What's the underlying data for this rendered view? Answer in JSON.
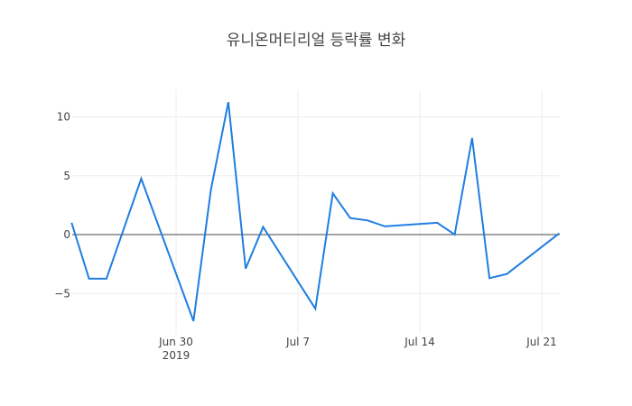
{
  "chart_data": {
    "type": "line",
    "title": "유니온머티리얼 등락률 변화",
    "xlabel": "",
    "ylabel": "",
    "x": [
      "2019-06-24",
      "2019-06-25",
      "2019-06-26",
      "2019-06-28",
      "2019-07-01",
      "2019-07-02",
      "2019-07-03",
      "2019-07-04",
      "2019-07-05",
      "2019-07-08",
      "2019-07-09",
      "2019-07-10",
      "2019-07-11",
      "2019-07-12",
      "2019-07-15",
      "2019-07-16",
      "2019-07-17",
      "2019-07-18",
      "2019-07-19",
      "2019-07-22"
    ],
    "series": [
      {
        "name": "등락률",
        "color": "#1f7ee0",
        "values": [
          1.0,
          -3.75,
          -3.75,
          4.75,
          -7.35,
          3.8,
          11.25,
          -2.9,
          0.65,
          -6.3,
          3.5,
          1.4,
          1.2,
          0.7,
          1.0,
          0.0,
          8.2,
          -3.7,
          -3.35,
          0.1
        ]
      }
    ],
    "yticks": [
      -5,
      0,
      5,
      10
    ],
    "ytick_labels": [
      "−5",
      "0",
      "5",
      "10"
    ],
    "xticks": [
      "2019-06-30",
      "2019-07-07",
      "2019-07-14",
      "2019-07-21"
    ],
    "xtick_labels": [
      "Jun 30\n2019",
      "Jul 7",
      "Jul 14",
      "Jul 21"
    ],
    "ylim": [
      -8.2,
      12.3
    ],
    "xlim": [
      "2019-06-24",
      "2019-07-22"
    ],
    "grid": true,
    "legend": false
  },
  "header": {
    "title": "유니온머티리얼 등락률 변화"
  }
}
